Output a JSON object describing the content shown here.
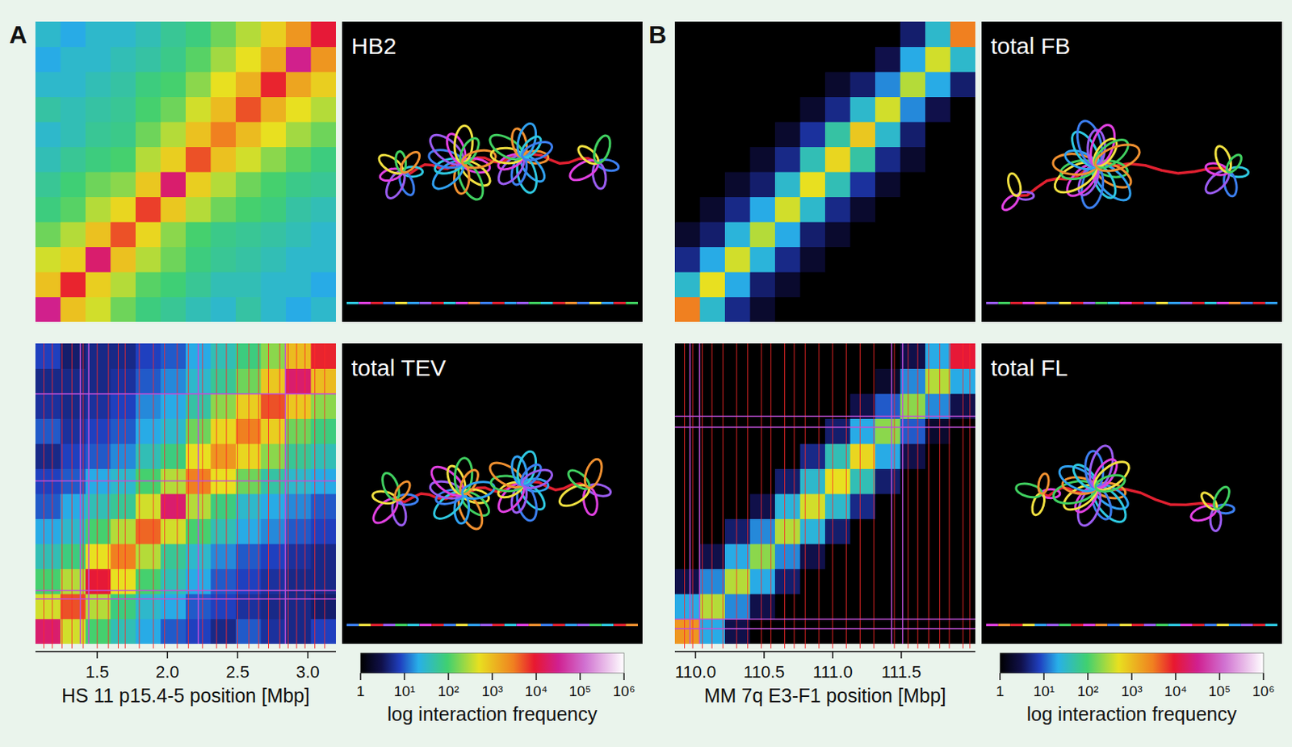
{
  "chart_data": [
    {
      "type": "heatmap",
      "label": "A",
      "title": "HB2",
      "xlim": [
        1.06,
        3.2
      ],
      "cells": [
        [
          30000,
          900,
          400,
          150,
          80,
          60,
          40,
          30,
          50,
          30,
          20,
          30
        ],
        [
          900,
          8000,
          700,
          300,
          120,
          90,
          60,
          40,
          40,
          30,
          30,
          20
        ],
        [
          400,
          700,
          20000,
          900,
          300,
          150,
          80,
          60,
          50,
          40,
          30,
          30
        ],
        [
          150,
          300,
          900,
          5000,
          600,
          200,
          100,
          70,
          60,
          50,
          40,
          30
        ],
        [
          80,
          120,
          300,
          600,
          6000,
          800,
          300,
          150,
          100,
          80,
          50,
          40
        ],
        [
          60,
          90,
          150,
          200,
          800,
          20000,
          700,
          300,
          150,
          100,
          70,
          60
        ],
        [
          40,
          60,
          80,
          100,
          300,
          700,
          5000,
          900,
          400,
          200,
          120,
          80
        ],
        [
          30,
          40,
          60,
          70,
          150,
          300,
          900,
          3000,
          1000,
          500,
          250,
          150
        ],
        [
          50,
          40,
          50,
          60,
          100,
          150,
          400,
          1000,
          5000,
          1200,
          500,
          300
        ],
        [
          30,
          30,
          40,
          50,
          80,
          100,
          200,
          500,
          1200,
          8000,
          1500,
          700
        ],
        [
          20,
          30,
          30,
          40,
          50,
          70,
          120,
          250,
          500,
          1500,
          30000,
          2000
        ],
        [
          30,
          20,
          30,
          30,
          40,
          60,
          80,
          150,
          300,
          700,
          2000,
          10000
        ]
      ]
    },
    {
      "type": "heatmap",
      "title": "total TEV",
      "xlabel": "HS 11 p15.4-5 position [Mbp]",
      "xlim": [
        1.06,
        3.2
      ],
      "xticks": [
        1.5,
        {
          "value": 2,
          "label": "2.0"
        },
        2.5,
        {
          "value": 3,
          "label": "3.0"
        }
      ],
      "cells": [
        [
          20000,
          400,
          100,
          40,
          20,
          10,
          8,
          5,
          10,
          6,
          5,
          8
        ],
        [
          400,
          5000,
          300,
          80,
          30,
          20,
          10,
          8,
          6,
          5,
          5,
          4
        ],
        [
          100,
          300,
          10000,
          500,
          100,
          40,
          20,
          10,
          8,
          6,
          5,
          5
        ],
        [
          40,
          80,
          500,
          3000,
          300,
          60,
          30,
          15,
          10,
          8,
          6,
          5
        ],
        [
          20,
          30,
          100,
          300,
          4000,
          400,
          100,
          40,
          20,
          15,
          10,
          8
        ],
        [
          10,
          20,
          40,
          60,
          400,
          20000,
          300,
          80,
          30,
          20,
          15,
          10
        ],
        [
          8,
          10,
          20,
          30,
          100,
          300,
          3000,
          500,
          150,
          50,
          30,
          20
        ],
        [
          5,
          8,
          10,
          15,
          40,
          80,
          500,
          2000,
          600,
          200,
          60,
          40
        ],
        [
          10,
          6,
          8,
          10,
          20,
          30,
          150,
          600,
          3000,
          700,
          150,
          80
        ],
        [
          6,
          5,
          6,
          8,
          15,
          20,
          50,
          200,
          700,
          5000,
          800,
          200
        ],
        [
          5,
          5,
          5,
          6,
          10,
          15,
          30,
          60,
          150,
          800,
          20000,
          1000
        ],
        [
          8,
          4,
          5,
          5,
          8,
          10,
          20,
          40,
          80,
          200,
          1000,
          8000
        ]
      ],
      "boundaries": [
        1.12,
        1.18,
        1.25,
        1.32,
        1.4,
        1.5,
        1.58,
        1.65,
        1.7,
        1.8,
        1.9,
        1.98,
        2.07,
        2.15,
        2.25,
        2.35,
        2.42,
        2.5,
        2.58,
        2.65,
        2.72,
        2.8,
        2.86,
        2.92,
        2.98,
        3.05,
        3.12
      ],
      "highlights": [
        1.38,
        1.44,
        2.22,
        2.84
      ],
      "log": true,
      "color_range": [
        1,
        1000000
      ],
      "color_ticks": [
        1,
        {
          "value": 10,
          "label": "10¹"
        },
        {
          "value": 100,
          "label": "10²"
        },
        {
          "value": 1000,
          "label": "10³"
        },
        {
          "value": 10000,
          "label": "10⁴"
        },
        {
          "value": 100000,
          "label": "10⁵"
        },
        {
          "value": 1000000,
          "label": "10⁶"
        }
      ],
      "color_label": "log interaction frequency"
    },
    {
      "type": "heatmap",
      "label": "B",
      "title": "total FB",
      "xlim": [
        109.85,
        112.04
      ],
      "cells": [
        [
          3000,
          30,
          5,
          2,
          1,
          1,
          1,
          1,
          1,
          1,
          1,
          1
        ],
        [
          30,
          500,
          20,
          4,
          2,
          1,
          1,
          1,
          1,
          1,
          1,
          1
        ],
        [
          5,
          20,
          400,
          25,
          5,
          2,
          1,
          1,
          1,
          1,
          1,
          1
        ],
        [
          2,
          4,
          25,
          300,
          20,
          4,
          2,
          1,
          1,
          1,
          1,
          1
        ],
        [
          1,
          2,
          5,
          20,
          400,
          30,
          5,
          2,
          1,
          1,
          1,
          1
        ],
        [
          1,
          1,
          2,
          4,
          30,
          500,
          40,
          6,
          2,
          1,
          1,
          1
        ],
        [
          1,
          1,
          1,
          2,
          5,
          40,
          600,
          50,
          5,
          2,
          1,
          1
        ],
        [
          1,
          1,
          1,
          1,
          2,
          6,
          50,
          800,
          30,
          4,
          1,
          1
        ],
        [
          1,
          1,
          1,
          1,
          1,
          2,
          5,
          30,
          400,
          15,
          3,
          1
        ],
        [
          1,
          1,
          1,
          1,
          1,
          1,
          2,
          4,
          15,
          300,
          20,
          4
        ],
        [
          1,
          1,
          1,
          1,
          1,
          1,
          1,
          1,
          3,
          20,
          400,
          30
        ],
        [
          1,
          1,
          1,
          1,
          1,
          1,
          1,
          1,
          1,
          4,
          30,
          3000
        ]
      ]
    },
    {
      "type": "heatmap",
      "title": "total FL",
      "xlabel": "MM 7q E3-F1 position [Mbp]",
      "xlim": [
        109.85,
        112.04
      ],
      "xticks": [
        {
          "value": 110,
          "label": "110.0"
        },
        110.5,
        {
          "value": 111,
          "label": "111.0"
        },
        111.5
      ],
      "cells": [
        [
          2000,
          20,
          3,
          1,
          1,
          1,
          1,
          1,
          1,
          1,
          1,
          1
        ],
        [
          20,
          300,
          15,
          3,
          1,
          1,
          1,
          1,
          1,
          1,
          1,
          1
        ],
        [
          3,
          15,
          300,
          20,
          4,
          1,
          1,
          1,
          1,
          1,
          1,
          1
        ],
        [
          1,
          3,
          20,
          200,
          15,
          3,
          1,
          1,
          1,
          1,
          1,
          1
        ],
        [
          1,
          1,
          4,
          15,
          300,
          25,
          4,
          1,
          1,
          1,
          1,
          1
        ],
        [
          1,
          1,
          1,
          3,
          25,
          400,
          30,
          5,
          1,
          1,
          1,
          1
        ],
        [
          1,
          1,
          1,
          1,
          4,
          30,
          500,
          40,
          4,
          1,
          1,
          1
        ],
        [
          1,
          1,
          1,
          1,
          1,
          5,
          40,
          600,
          20,
          3,
          1,
          1
        ],
        [
          1,
          1,
          1,
          1,
          1,
          1,
          4,
          20,
          200,
          10,
          2,
          1
        ],
        [
          1,
          1,
          1,
          1,
          1,
          1,
          1,
          3,
          10,
          200,
          15,
          3
        ],
        [
          1,
          1,
          1,
          1,
          1,
          1,
          1,
          1,
          2,
          15,
          300,
          20
        ],
        [
          1,
          1,
          1,
          1,
          1,
          1,
          1,
          1,
          1,
          3,
          20,
          10000
        ]
      ],
      "boundaries": [
        109.92,
        109.98,
        110.05,
        110.12,
        110.2,
        110.3,
        110.38,
        110.48,
        110.55,
        110.65,
        110.72,
        110.8,
        110.9,
        111.0,
        111.1,
        111.2,
        111.3,
        111.45,
        111.55,
        111.62,
        111.7,
        111.78,
        111.85,
        111.95,
        112.0
      ],
      "highlights": [
        109.96,
        110.03,
        111.43,
        111.51
      ],
      "log": true,
      "color_range": [
        1,
        1000000
      ],
      "color_ticks": [
        1,
        {
          "value": 10,
          "label": "10¹"
        },
        {
          "value": 100,
          "label": "10²"
        },
        {
          "value": 1000,
          "label": "10³"
        },
        {
          "value": 10000,
          "label": "10⁴"
        },
        {
          "value": 100000,
          "label": "10⁵"
        },
        {
          "value": 1000000,
          "label": "10⁶"
        }
      ],
      "color_label": "log interaction frequency"
    }
  ]
}
